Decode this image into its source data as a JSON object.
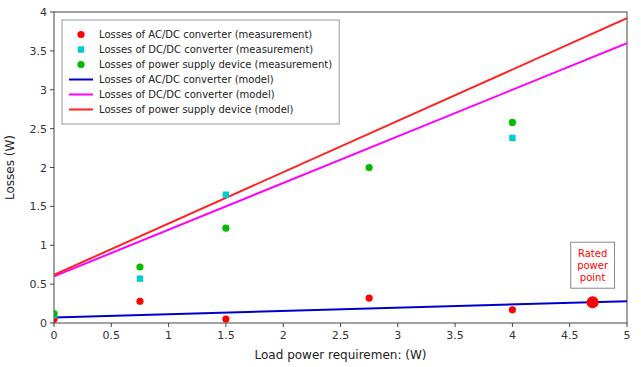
{
  "chart_data": {
    "type": "scatter",
    "xlabel": "Load power requiremen: (W)",
    "ylabel": "Losses (W)",
    "xlim": [
      0,
      5
    ],
    "ylim": [
      0,
      4
    ],
    "xticks": [
      0,
      0.5,
      1,
      1.5,
      2,
      2.5,
      3,
      3.5,
      4,
      4.5,
      5
    ],
    "yticks": [
      0,
      0.5,
      1,
      1.5,
      2,
      2.5,
      3,
      3.5,
      4
    ],
    "grid": false,
    "legend": "upper left",
    "series": [
      {
        "name": "Losses of AC/DC converter (measurement)",
        "type": "scatter",
        "marker": "circle",
        "color": "#ff0000",
        "x": [
          0.0,
          0.75,
          1.5,
          2.75,
          4.0,
          4.7
        ],
        "values": [
          0.05,
          0.28,
          0.05,
          0.32,
          0.17,
          0.27
        ]
      },
      {
        "name": "Losses of DC/DC converter (measurement)",
        "type": "scatter",
        "marker": "square",
        "color": "#00cccc",
        "x": [
          0.0,
          0.75,
          1.5,
          4.0
        ],
        "values": [
          0.1,
          0.57,
          1.65,
          2.38
        ]
      },
      {
        "name": "Losses of power supply device (measurement)",
        "type": "scatter",
        "marker": "circle",
        "color": "#00bb00",
        "x": [
          0.0,
          0.75,
          1.5,
          2.75,
          4.0
        ],
        "values": [
          0.12,
          0.72,
          1.22,
          2.0,
          2.58
        ]
      },
      {
        "name": "Losses of AC/DC converter (model)",
        "type": "line",
        "color": "#0000cc",
        "x": [
          0,
          5
        ],
        "values": [
          0.07,
          0.28
        ]
      },
      {
        "name": "Losses of DC/DC converter (model)",
        "type": "line",
        "color": "#ff00ff",
        "x": [
          0,
          5
        ],
        "values": [
          0.6,
          3.6
        ]
      },
      {
        "name": "Losses of power supply device (model)",
        "type": "line",
        "color": "#ff2222",
        "x": [
          0,
          5
        ],
        "values": [
          0.62,
          3.92
        ]
      }
    ],
    "annotations": [
      {
        "text": "Rated\npower\npoint",
        "x": 4.7,
        "y": 0.26737475,
        "color": "#ff0000"
      }
    ]
  }
}
